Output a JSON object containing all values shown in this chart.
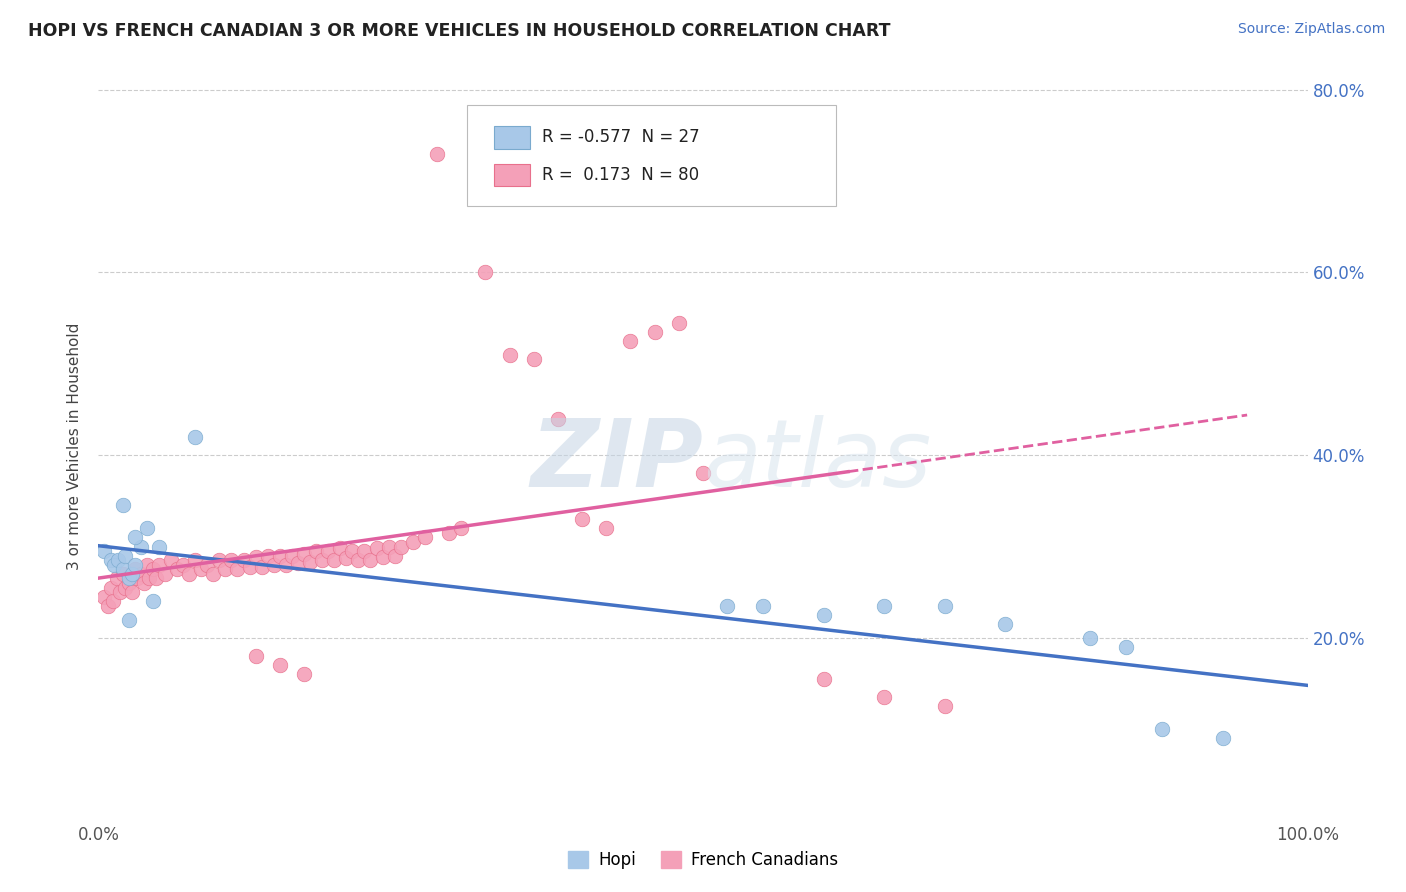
{
  "title": "HOPI VS FRENCH CANADIAN 3 OR MORE VEHICLES IN HOUSEHOLD CORRELATION CHART",
  "source": "Source: ZipAtlas.com",
  "ylabel": "3 or more Vehicles in Household",
  "xlim": [
    0.0,
    1.0
  ],
  "ylim": [
    0.0,
    0.82
  ],
  "hopi_color": "#a8c8e8",
  "french_color": "#f4a0b8",
  "hopi_edge_color": "#7aaace",
  "french_edge_color": "#e8708c",
  "hopi_line_color": "#4472c4",
  "french_line_color": "#e060a0",
  "hopi_R": -0.577,
  "hopi_N": 27,
  "french_R": 0.173,
  "french_N": 80,
  "legend_label_hopi": "Hopi",
  "legend_label_french": "French Canadians",
  "background_color": "#ffffff",
  "grid_color": "#cccccc",
  "right_tick_color": "#4472c4",
  "title_color": "#222222",
  "source_color": "#4472c4",
  "watermark_color": "#d0dce8",
  "hopi_x": [
    0.005,
    0.01,
    0.013,
    0.016,
    0.02,
    0.022,
    0.025,
    0.028,
    0.03,
    0.035,
    0.04,
    0.045,
    0.05,
    0.08,
    0.02,
    0.03,
    0.025,
    0.52,
    0.55,
    0.6,
    0.65,
    0.7,
    0.75,
    0.82,
    0.85,
    0.88,
    0.93
  ],
  "hopi_y": [
    0.295,
    0.285,
    0.28,
    0.285,
    0.275,
    0.29,
    0.265,
    0.27,
    0.28,
    0.3,
    0.32,
    0.24,
    0.3,
    0.42,
    0.345,
    0.31,
    0.22,
    0.235,
    0.235,
    0.225,
    0.235,
    0.235,
    0.215,
    0.2,
    0.19,
    0.1,
    0.09
  ],
  "fc_x": [
    0.005,
    0.008,
    0.01,
    0.012,
    0.015,
    0.018,
    0.02,
    0.022,
    0.025,
    0.028,
    0.03,
    0.032,
    0.035,
    0.038,
    0.04,
    0.042,
    0.045,
    0.048,
    0.05,
    0.055,
    0.06,
    0.065,
    0.07,
    0.075,
    0.08,
    0.085,
    0.09,
    0.095,
    0.1,
    0.105,
    0.11,
    0.115,
    0.12,
    0.125,
    0.13,
    0.135,
    0.14,
    0.145,
    0.15,
    0.155,
    0.16,
    0.165,
    0.17,
    0.175,
    0.18,
    0.185,
    0.19,
    0.195,
    0.2,
    0.205,
    0.21,
    0.215,
    0.22,
    0.225,
    0.23,
    0.235,
    0.24,
    0.245,
    0.25,
    0.26,
    0.27,
    0.28,
    0.29,
    0.3,
    0.32,
    0.34,
    0.36,
    0.38,
    0.4,
    0.42,
    0.44,
    0.46,
    0.48,
    0.5,
    0.13,
    0.15,
    0.17,
    0.6,
    0.65,
    0.7
  ],
  "fc_y": [
    0.245,
    0.235,
    0.255,
    0.24,
    0.265,
    0.25,
    0.27,
    0.255,
    0.26,
    0.25,
    0.275,
    0.265,
    0.27,
    0.26,
    0.28,
    0.265,
    0.275,
    0.265,
    0.28,
    0.27,
    0.285,
    0.275,
    0.28,
    0.27,
    0.285,
    0.275,
    0.28,
    0.27,
    0.285,
    0.275,
    0.285,
    0.275,
    0.285,
    0.278,
    0.288,
    0.278,
    0.29,
    0.28,
    0.29,
    0.28,
    0.29,
    0.282,
    0.292,
    0.283,
    0.295,
    0.285,
    0.295,
    0.285,
    0.298,
    0.287,
    0.295,
    0.285,
    0.295,
    0.285,
    0.298,
    0.288,
    0.3,
    0.29,
    0.3,
    0.305,
    0.31,
    0.73,
    0.315,
    0.32,
    0.6,
    0.51,
    0.505,
    0.44,
    0.33,
    0.32,
    0.525,
    0.535,
    0.545,
    0.38,
    0.18,
    0.17,
    0.16,
    0.155,
    0.135,
    0.125
  ]
}
